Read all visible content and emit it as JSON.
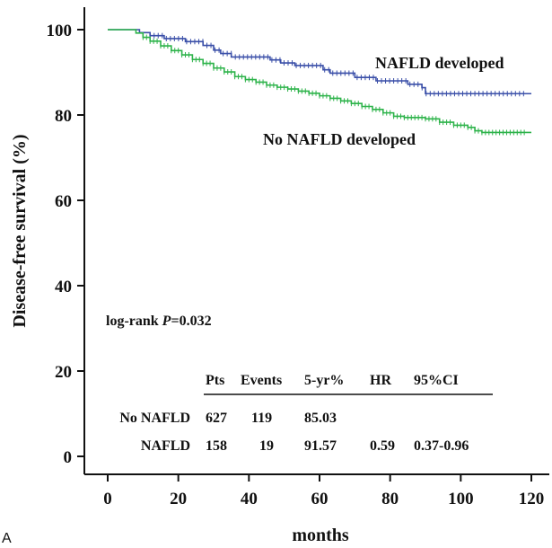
{
  "panel_label": "A",
  "chart_data": {
    "type": "line",
    "subtype": "kaplan-meier",
    "xlabel": "months",
    "ylabel": "Disease-free survival (%)",
    "xlim": [
      0,
      120
    ],
    "ylim": [
      0,
      100
    ],
    "xticks": [
      0,
      20,
      40,
      60,
      80,
      100,
      120
    ],
    "yticks": [
      0,
      20,
      40,
      60,
      80,
      100
    ],
    "grid": false,
    "series": [
      {
        "name": "NAFLD developed",
        "color": "#3a4fa8",
        "points": [
          [
            0,
            100
          ],
          [
            8,
            100
          ],
          [
            9,
            99.3
          ],
          [
            12,
            98.6
          ],
          [
            15,
            98.6
          ],
          [
            16,
            97.9
          ],
          [
            22,
            97.2
          ],
          [
            27,
            96.3
          ],
          [
            30,
            95.2
          ],
          [
            32,
            94.4
          ],
          [
            35,
            93.6
          ],
          [
            44,
            93.6
          ],
          [
            46,
            92.9
          ],
          [
            49,
            92.2
          ],
          [
            53,
            91.6
          ],
          [
            60,
            91.6
          ],
          [
            61,
            90.6
          ],
          [
            63,
            89.8
          ],
          [
            69,
            89.8
          ],
          [
            70,
            88.8
          ],
          [
            76,
            88.0
          ],
          [
            84,
            88.0
          ],
          [
            85,
            87.2
          ],
          [
            89,
            86.4
          ],
          [
            90,
            85.0
          ],
          [
            120,
            85.0
          ]
        ]
      },
      {
        "name": "No NAFLD developed",
        "color": "#2db34a",
        "points": [
          [
            0,
            100
          ],
          [
            6,
            100
          ],
          [
            8,
            99.2
          ],
          [
            10,
            98.2
          ],
          [
            12,
            97.3
          ],
          [
            15,
            96.2
          ],
          [
            18,
            95.1
          ],
          [
            21,
            94.1
          ],
          [
            24,
            93.0
          ],
          [
            27,
            92.1
          ],
          [
            30,
            91.0
          ],
          [
            33,
            90.1
          ],
          [
            36,
            89.0
          ],
          [
            39,
            88.3
          ],
          [
            42,
            87.7
          ],
          [
            45,
            87.0
          ],
          [
            48,
            86.5
          ],
          [
            51,
            86.1
          ],
          [
            54,
            85.6
          ],
          [
            57,
            85.1
          ],
          [
            60,
            84.5
          ],
          [
            63,
            83.9
          ],
          [
            66,
            83.3
          ],
          [
            69,
            82.7
          ],
          [
            72,
            82.0
          ],
          [
            75,
            81.3
          ],
          [
            78,
            80.5
          ],
          [
            81,
            79.7
          ],
          [
            84,
            79.4
          ],
          [
            90,
            79.1
          ],
          [
            94,
            78.3
          ],
          [
            98,
            77.6
          ],
          [
            102,
            77.1
          ],
          [
            104,
            76.3
          ],
          [
            106,
            75.9
          ],
          [
            120,
            75.9
          ]
        ]
      }
    ],
    "annotation": "log-rank P=0.032",
    "stats_table": {
      "headers": [
        "",
        "Pts",
        "Events",
        "5-yr%",
        "HR",
        "95%CI"
      ],
      "rows": [
        [
          "No NAFLD",
          "627",
          "119",
          "85.03",
          "",
          ""
        ],
        [
          "NAFLD",
          "158",
          "19",
          "91.57",
          "0.59",
          "0.37-0.96"
        ]
      ]
    }
  }
}
